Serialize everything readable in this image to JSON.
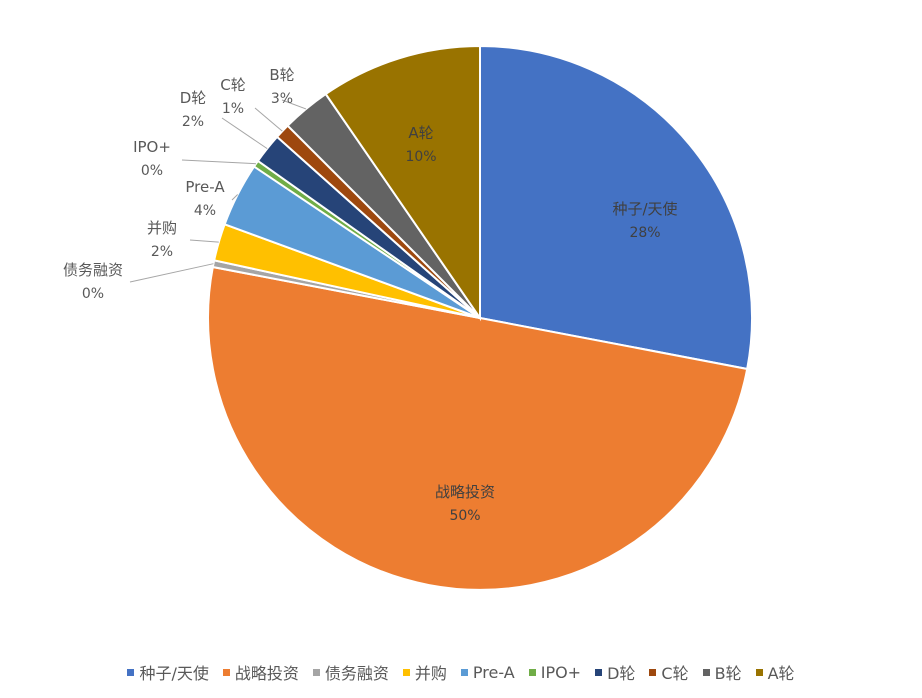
{
  "chart_data": {
    "type": "pie",
    "title": "",
    "legend_position": "bottom",
    "slices": [
      {
        "name": "种子/天使",
        "value": 28,
        "label": "28%",
        "color": "#4472C4"
      },
      {
        "name": "战略投资",
        "value": 50,
        "label": "50%",
        "color": "#ED7D31"
      },
      {
        "name": "债务融资",
        "value": 0.4,
        "label": "0%",
        "color": "#A5A5A5"
      },
      {
        "name": "并购",
        "value": 2.2,
        "label": "2%",
        "color": "#FFC000"
      },
      {
        "name": "Pre-A",
        "value": 3.8,
        "label": "4%",
        "color": "#5B9BD5"
      },
      {
        "name": "IPO+",
        "value": 0.4,
        "label": "0%",
        "color": "#70AD47"
      },
      {
        "name": "D轮",
        "value": 1.8,
        "label": "2%",
        "color": "#264478"
      },
      {
        "name": "C轮",
        "value": 0.9,
        "label": "1%",
        "color": "#9E480E"
      },
      {
        "name": "B轮",
        "value": 2.9,
        "label": "3%",
        "color": "#636363"
      },
      {
        "name": "A轮",
        "value": 9.6,
        "label": "10%",
        "color": "#997300"
      }
    ]
  }
}
